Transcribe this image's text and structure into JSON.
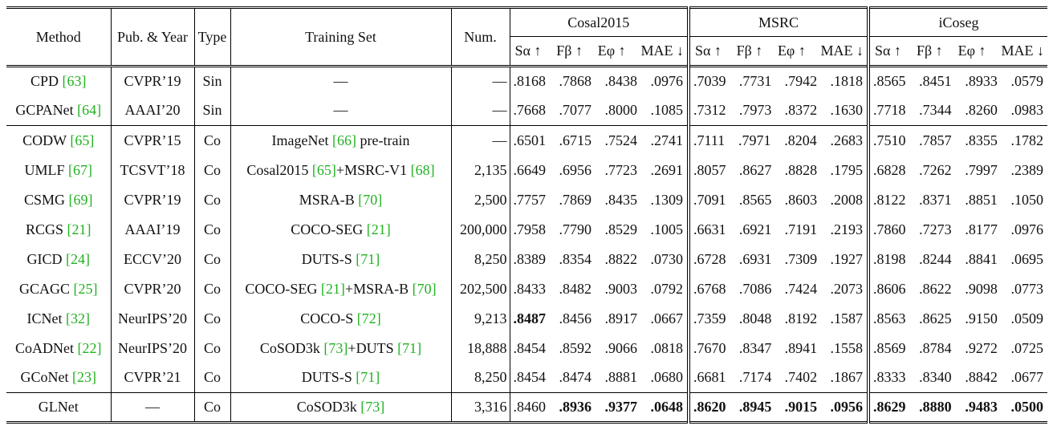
{
  "header": {
    "method": "Method",
    "pub_year": "Pub. & Year",
    "type": "Type",
    "training_set": "Training Set",
    "num": "Num.",
    "datasets": [
      "Cosal2015",
      "MSRC",
      "iCoseg"
    ],
    "metrics": [
      "Sα ↑",
      "Fβ ↑",
      "Eφ ↑",
      "MAE ↓"
    ]
  },
  "rows": [
    {
      "method": "CPD",
      "ref": "[63]",
      "pub": "CVPR’19",
      "type": "Sin",
      "train": "—",
      "train_ref": "",
      "train_suffix": "",
      "num": "—",
      "cosal": [
        ".8168",
        ".7868",
        ".8438",
        ".0976"
      ],
      "msrc": [
        ".7039",
        ".7731",
        ".7942",
        ".1818"
      ],
      "icoseg": [
        ".8565",
        ".8451",
        ".8933",
        ".0579"
      ]
    },
    {
      "method": "GCPANet",
      "ref": "[64]",
      "pub": "AAAI’20",
      "type": "Sin",
      "train": "—",
      "train_ref": "",
      "train_suffix": "",
      "num": "—",
      "cosal": [
        ".7668",
        ".7077",
        ".8000",
        ".1085"
      ],
      "msrc": [
        ".7312",
        ".7973",
        ".8372",
        ".1630"
      ],
      "icoseg": [
        ".7718",
        ".7344",
        ".8260",
        ".0983"
      ]
    },
    {
      "method": "CODW",
      "ref": "[65]",
      "pub": "CVPR’15",
      "type": "Co",
      "train": "ImageNet ",
      "train_ref": "[66]",
      "train_suffix": " pre-train",
      "num": "—",
      "cosal": [
        ".6501",
        ".6715",
        ".7524",
        ".2741"
      ],
      "msrc": [
        ".7111",
        ".7971",
        ".8204",
        ".2683"
      ],
      "icoseg": [
        ".7510",
        ".7857",
        ".8355",
        ".1782"
      ]
    },
    {
      "method": "UMLF",
      "ref": "[67]",
      "pub": "TCSVT’18",
      "type": "Co",
      "train": "Cosal2015 ",
      "train_ref": "[65]",
      "train_suffix": "+MSRC-V1 ",
      "train_ref2": "[68]",
      "num": "2,135",
      "cosal": [
        ".6649",
        ".6956",
        ".7723",
        ".2691"
      ],
      "msrc": [
        ".8057",
        ".8627",
        ".8828",
        ".1795"
      ],
      "icoseg": [
        ".6828",
        ".7262",
        ".7997",
        ".2389"
      ]
    },
    {
      "method": "CSMG",
      "ref": "[69]",
      "pub": "CVPR’19",
      "type": "Co",
      "train": "MSRA-B ",
      "train_ref": "[70]",
      "train_suffix": "",
      "num": "2,500",
      "cosal": [
        ".7757",
        ".7869",
        ".8435",
        ".1309"
      ],
      "msrc": [
        ".7091",
        ".8565",
        ".8603",
        ".2008"
      ],
      "icoseg": [
        ".8122",
        ".8371",
        ".8851",
        ".1050"
      ]
    },
    {
      "method": "RCGS",
      "ref": "[21]",
      "pub": "AAAI’19",
      "type": "Co",
      "train": "COCO-SEG ",
      "train_ref": "[21]",
      "train_suffix": "",
      "num": "200,000",
      "cosal": [
        ".7958",
        ".7790",
        ".8529",
        ".1005"
      ],
      "msrc": [
        ".6631",
        ".6921",
        ".7191",
        ".2193"
      ],
      "icoseg": [
        ".7860",
        ".7273",
        ".8177",
        ".0976"
      ]
    },
    {
      "method": "GICD",
      "ref": "[24]",
      "pub": "ECCV’20",
      "type": "Co",
      "train": "DUTS-S ",
      "train_ref": "[71]",
      "train_suffix": "",
      "num": "8,250",
      "cosal": [
        ".8389",
        ".8354",
        ".8822",
        ".0730"
      ],
      "msrc": [
        ".6728",
        ".6931",
        ".7309",
        ".1927"
      ],
      "icoseg": [
        ".8198",
        ".8244",
        ".8841",
        ".0695"
      ]
    },
    {
      "method": "GCAGC",
      "ref": "[25]",
      "pub": "CVPR’20",
      "type": "Co",
      "train": "COCO-SEG ",
      "train_ref": "[21]",
      "train_suffix": "+MSRA-B ",
      "train_ref2": "[70]",
      "num": "202,500",
      "cosal": [
        ".8433",
        ".8482",
        ".9003",
        ".0792"
      ],
      "msrc": [
        ".6768",
        ".7086",
        ".7424",
        ".2073"
      ],
      "icoseg": [
        ".8606",
        ".8622",
        ".9098",
        ".0773"
      ]
    },
    {
      "method": "ICNet",
      "ref": "[32]",
      "pub": "NeurIPS’20",
      "type": "Co",
      "train": "COCO-S ",
      "train_ref": "[72]",
      "train_suffix": "",
      "num": "9,213",
      "cosal": [
        ".8487",
        ".8456",
        ".8917",
        ".0667"
      ],
      "msrc": [
        ".7359",
        ".8048",
        ".8192",
        ".1587"
      ],
      "icoseg": [
        ".8563",
        ".8625",
        ".9150",
        ".0509"
      ]
    },
    {
      "method": "CoADNet",
      "ref": "[22]",
      "pub": "NeurIPS’20",
      "type": "Co",
      "train": "CoSOD3k ",
      "train_ref": "[73]",
      "train_suffix": "+DUTS ",
      "train_ref2": "[71]",
      "num": "18,888",
      "cosal": [
        ".8454",
        ".8592",
        ".9066",
        ".0818"
      ],
      "msrc": [
        ".7670",
        ".8347",
        ".8941",
        ".1558"
      ],
      "icoseg": [
        ".8569",
        ".8784",
        ".9272",
        ".0725"
      ]
    },
    {
      "method": "GCoNet",
      "ref": "[23]",
      "pub": "CVPR’21",
      "type": "Co",
      "train": "DUTS-S ",
      "train_ref": "[71]",
      "train_suffix": "",
      "num": "8,250",
      "cosal": [
        ".8454",
        ".8474",
        ".8881",
        ".0680"
      ],
      "msrc": [
        ".6681",
        ".7174",
        ".7402",
        ".1867"
      ],
      "icoseg": [
        ".8333",
        ".8340",
        ".8842",
        ".0677"
      ]
    },
    {
      "method": "GLNet",
      "ref": "",
      "pub": "—",
      "type": "Co",
      "train": "CoSOD3k ",
      "train_ref": "[73]",
      "train_suffix": "",
      "num": "3,316",
      "cosal": [
        ".8460",
        ".8936",
        ".9377",
        ".0648"
      ],
      "msrc": [
        ".8620",
        ".8945",
        ".9015",
        ".0956"
      ],
      "icoseg": [
        ".8629",
        ".8880",
        ".9483",
        ".0500"
      ]
    }
  ],
  "bold": {
    "8": {
      "cosal": [
        0
      ]
    },
    "11": {
      "cosal": [
        1,
        2,
        3
      ],
      "msrc": [
        0,
        1,
        2,
        3
      ],
      "icoseg": [
        0,
        1,
        2,
        3
      ]
    }
  },
  "colors": {
    "reference": "#22b022",
    "text": "#111111"
  }
}
